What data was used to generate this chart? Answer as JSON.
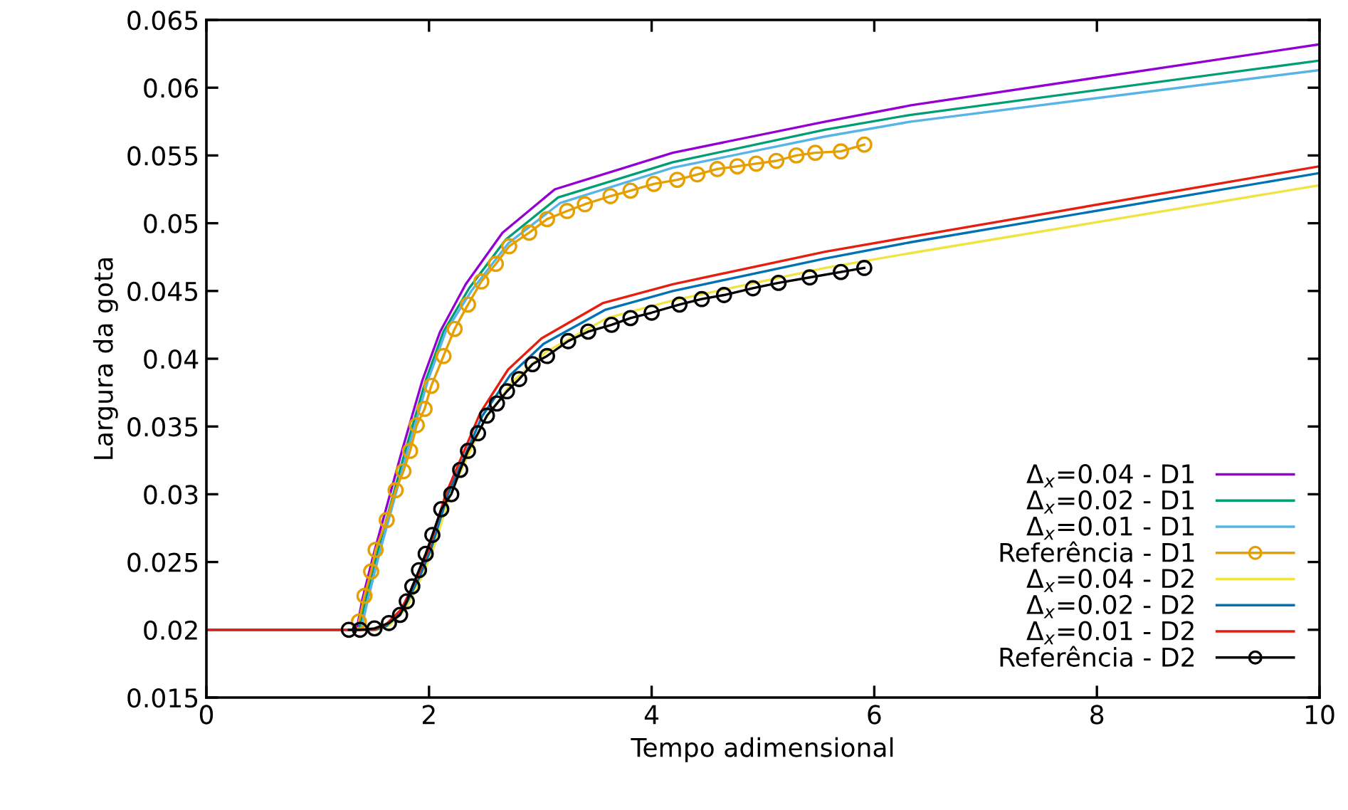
{
  "chart_data": {
    "type": "line",
    "xlabel": "Tempo adimensional",
    "ylabel": "Largura da gota",
    "xlim": [
      0,
      10
    ],
    "ylim": [
      0.015,
      0.065
    ],
    "xticks": [
      0,
      2,
      4,
      6,
      8,
      10
    ],
    "yticks": [
      0.015,
      0.02,
      0.025,
      0.03,
      0.035,
      0.04,
      0.045,
      0.05,
      0.055,
      0.06,
      0.065
    ],
    "grid": false,
    "legend": "bottom right",
    "line_style": "solid",
    "series": [
      {
        "name": "Δ$_{x}$=0.04 - D1",
        "color": "#9400d3",
        "marker": "none",
        "x": [
          0,
          1.35,
          1.4,
          1.5,
          1.6,
          1.75,
          1.94,
          2.1,
          2.33,
          2.66,
          3.13,
          4.19,
          5.56,
          6.33,
          10
        ],
        "values": [
          0.02,
          0.02,
          0.0222,
          0.0255,
          0.0285,
          0.033,
          0.0384,
          0.042,
          0.0455,
          0.0493,
          0.0525,
          0.0552,
          0.0575,
          0.0587,
          0.0632
        ]
      },
      {
        "name": "Δ$_{x}$=0.02 - D1",
        "color": "#009e73",
        "marker": "none",
        "x": [
          0,
          1.37,
          1.43,
          1.53,
          1.63,
          1.78,
          1.97,
          2.13,
          2.36,
          2.69,
          3.16,
          4.19,
          5.56,
          6.33,
          10
        ],
        "values": [
          0.02,
          0.02,
          0.0222,
          0.0255,
          0.0285,
          0.033,
          0.0384,
          0.042,
          0.0452,
          0.0488,
          0.0519,
          0.0545,
          0.0569,
          0.058,
          0.062
        ]
      },
      {
        "name": "Δ$_{x}$=0.01 - D1",
        "color": "#56b4e9",
        "marker": "none",
        "x": [
          0,
          1.39,
          1.45,
          1.55,
          1.65,
          1.8,
          1.99,
          2.15,
          2.38,
          2.71,
          3.18,
          4.19,
          5.56,
          6.33,
          10
        ],
        "values": [
          0.02,
          0.02,
          0.0222,
          0.0255,
          0.0285,
          0.033,
          0.0384,
          0.042,
          0.045,
          0.0485,
          0.0515,
          0.0541,
          0.0564,
          0.0575,
          0.0613
        ]
      },
      {
        "name": "Referência - D1",
        "color": "#e69f00",
        "marker": "circle",
        "x": [
          1.37,
          1.42,
          1.48,
          1.52,
          1.62,
          1.7,
          1.77,
          1.83,
          1.89,
          1.96,
          2.02,
          2.13,
          2.23,
          2.35,
          2.47,
          2.6,
          2.72,
          2.9,
          3.06,
          3.24,
          3.4,
          3.63,
          3.81,
          4.02,
          4.23,
          4.41,
          4.59,
          4.77,
          4.94,
          5.12,
          5.3,
          5.47,
          5.7,
          5.91
        ],
        "values": [
          0.0206,
          0.0225,
          0.0243,
          0.0259,
          0.0281,
          0.0303,
          0.0317,
          0.0332,
          0.0351,
          0.0363,
          0.038,
          0.0402,
          0.0422,
          0.044,
          0.0457,
          0.047,
          0.0483,
          0.0493,
          0.0503,
          0.0509,
          0.0514,
          0.052,
          0.0524,
          0.0529,
          0.0532,
          0.0536,
          0.054,
          0.0542,
          0.0544,
          0.0546,
          0.055,
          0.0552,
          0.0553,
          0.0558
        ]
      },
      {
        "name": "Δ$_{x}$=0.04 - D2",
        "color": "#f0e442",
        "marker": "none",
        "x": [
          0,
          1.54,
          1.64,
          1.79,
          1.94,
          2.04,
          2.19,
          2.5,
          2.75,
          3.05,
          3.6,
          4.19,
          5.56,
          6.33,
          10
        ],
        "values": [
          0.02,
          0.02,
          0.0203,
          0.0215,
          0.024,
          0.026,
          0.03,
          0.0355,
          0.0383,
          0.0405,
          0.043,
          0.0443,
          0.0467,
          0.0478,
          0.0528
        ]
      },
      {
        "name": "Δ$_{x}$=0.02 - D2",
        "color": "#0072b2",
        "marker": "none",
        "x": [
          0,
          1.52,
          1.62,
          1.77,
          1.92,
          2.02,
          2.17,
          2.48,
          2.73,
          3.03,
          3.58,
          4.19,
          5.56,
          6.33,
          10
        ],
        "values": [
          0.02,
          0.02,
          0.0203,
          0.0215,
          0.024,
          0.026,
          0.03,
          0.0358,
          0.0388,
          0.0411,
          0.0436,
          0.045,
          0.0474,
          0.0486,
          0.0537
        ]
      },
      {
        "name": "Δ$_{x}$=0.01 - D2",
        "color": "#e51e10",
        "marker": "none",
        "x": [
          0,
          1.5,
          1.6,
          1.75,
          1.9,
          2.0,
          2.15,
          2.46,
          2.71,
          3.01,
          3.56,
          4.19,
          5.56,
          6.33,
          10
        ],
        "values": [
          0.02,
          0.02,
          0.0203,
          0.0215,
          0.024,
          0.026,
          0.03,
          0.036,
          0.0392,
          0.0415,
          0.0441,
          0.0455,
          0.0479,
          0.049,
          0.0542
        ]
      },
      {
        "name": "Referência - D2",
        "color": "#000000",
        "marker": "circle",
        "x": [
          1.28,
          1.38,
          1.51,
          1.64,
          1.74,
          1.8,
          1.85,
          1.91,
          1.97,
          2.03,
          2.11,
          2.2,
          2.28,
          2.35,
          2.44,
          2.52,
          2.61,
          2.7,
          2.81,
          2.93,
          3.06,
          3.25,
          3.43,
          3.64,
          3.81,
          4.0,
          4.25,
          4.45,
          4.65,
          4.91,
          5.14,
          5.42,
          5.7,
          5.91
        ],
        "values": [
          0.02,
          0.02,
          0.0201,
          0.0205,
          0.0211,
          0.0221,
          0.0232,
          0.0244,
          0.0256,
          0.027,
          0.0289,
          0.03,
          0.0318,
          0.0332,
          0.0345,
          0.0358,
          0.0367,
          0.0376,
          0.0385,
          0.0396,
          0.0402,
          0.0413,
          0.042,
          0.0425,
          0.043,
          0.0434,
          0.044,
          0.0444,
          0.0447,
          0.0452,
          0.0456,
          0.046,
          0.0464,
          0.0467
        ]
      }
    ]
  }
}
